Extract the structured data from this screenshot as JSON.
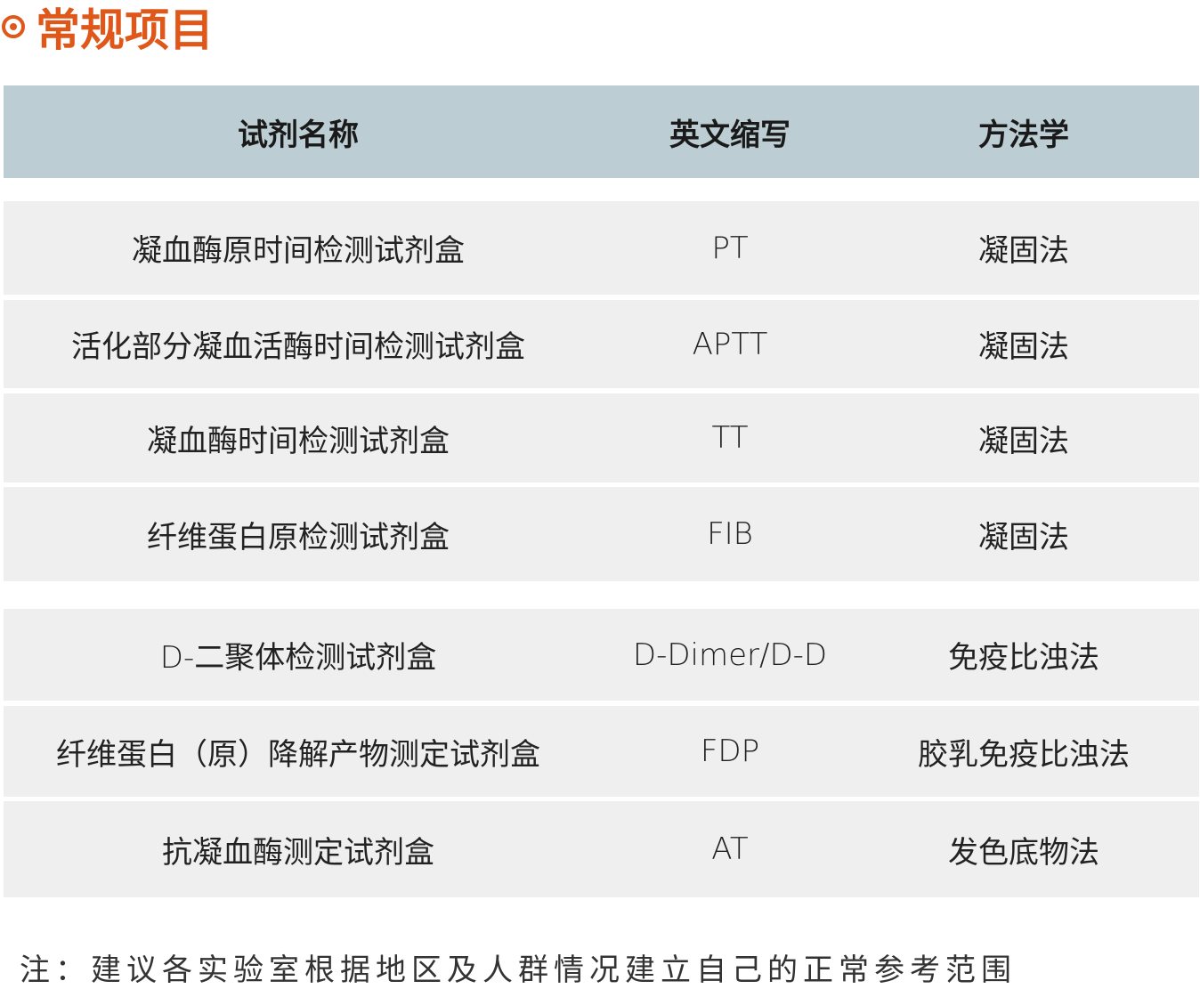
{
  "title": "常规项目",
  "colors": {
    "accent": "#e0571a",
    "header_bg": "#bccdd3",
    "row_bg": "#efefef"
  },
  "table": {
    "headers": [
      "试剂名称",
      "英文缩写",
      "方法学"
    ],
    "rows": [
      [
        "凝血酶原时间检测试剂盒",
        "PT",
        "凝固法"
      ],
      [
        "活化部分凝血活酶时间检测试剂盒",
        "APTT",
        "凝固法"
      ],
      [
        "凝血酶时间检测试剂盒",
        "TT",
        "凝固法"
      ],
      [
        "纤维蛋白原检测试剂盒",
        "FIB",
        "凝固法"
      ],
      [
        "D-二聚体检测试剂盒",
        "D-Dimer/D-D",
        "免疫比浊法"
      ],
      [
        "纤维蛋白（原）降解产物测定试剂盒",
        "FDP",
        "胶乳免疫比浊法"
      ],
      [
        "抗凝血酶测定试剂盒",
        "AT",
        "发色底物法"
      ]
    ]
  },
  "note": "注：建议各实验室根据地区及人群情况建立自己的正常参考范围"
}
